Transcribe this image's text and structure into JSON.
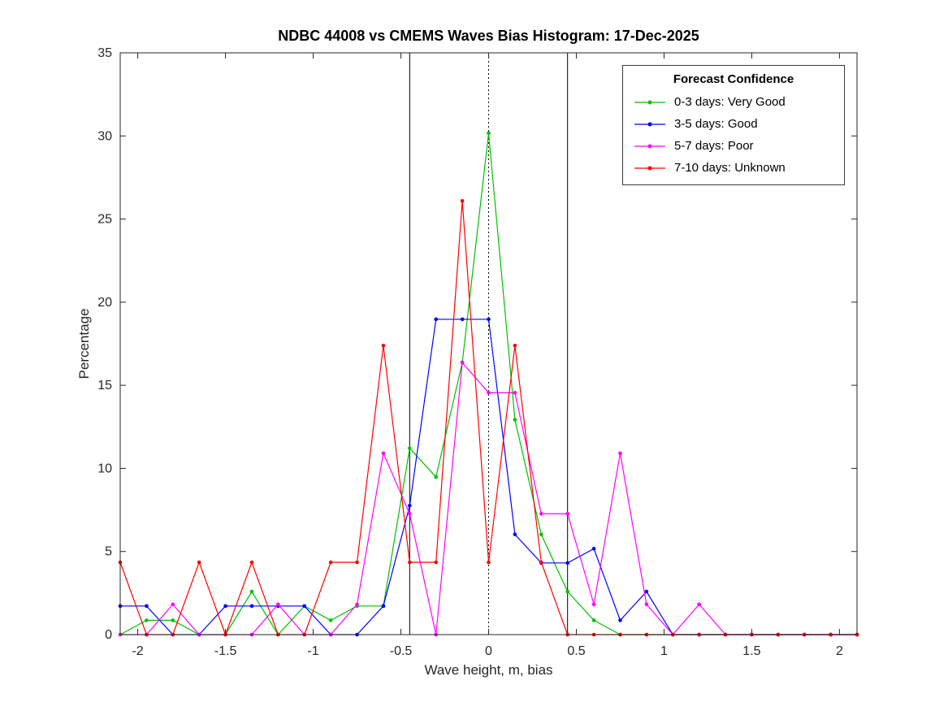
{
  "chart_data": {
    "type": "line",
    "title": "NDBC 44008 vs CMEMS Waves Bias Histogram: 17-Dec-2025",
    "xlabel": "Wave height, m, bias",
    "ylabel": "Percentage",
    "xlim": [
      -2.1,
      2.1
    ],
    "ylim": [
      0,
      35
    ],
    "xticks": [
      -2,
      -1.5,
      -1,
      -0.5,
      0,
      0.5,
      1,
      1.5,
      2
    ],
    "yticks": [
      0,
      5,
      10,
      15,
      20,
      25,
      30,
      35
    ],
    "grid": false,
    "marker": "dot",
    "legend": {
      "title": "Forecast Confidence",
      "position": "top-right"
    },
    "reference_lines": [
      {
        "x": -0.45,
        "style": "solid",
        "color": "#000000"
      },
      {
        "x": 0,
        "style": "dotted",
        "color": "#000000"
      },
      {
        "x": 0.45,
        "style": "solid",
        "color": "#000000"
      }
    ],
    "x": [
      -2.1,
      -1.95,
      -1.8,
      -1.65,
      -1.5,
      -1.35,
      -1.2,
      -1.05,
      -0.9,
      -0.75,
      -0.6,
      -0.45,
      -0.3,
      -0.15,
      0,
      0.15,
      0.3,
      0.45,
      0.6,
      0.75,
      0.9,
      1.05,
      1.2,
      1.35,
      1.5,
      1.65,
      1.8,
      1.95,
      2.1
    ],
    "series": [
      {
        "name": "0-3 days: Very Good",
        "color": "#00c000",
        "values": [
          0,
          0.86,
          0.86,
          0,
          0,
          2.59,
          0,
          1.72,
          0.86,
          1.72,
          1.72,
          11.21,
          9.48,
          16.38,
          30.17,
          12.93,
          6.03,
          2.59,
          0.86,
          0,
          0,
          0,
          0,
          0,
          0,
          0,
          0,
          0,
          0
        ]
      },
      {
        "name": "3-5 days: Good",
        "color": "#0000ff",
        "values": [
          1.72,
          1.72,
          0,
          0,
          1.72,
          1.72,
          1.72,
          1.72,
          0,
          0,
          1.72,
          7.76,
          18.97,
          18.97,
          18.97,
          6.03,
          4.31,
          4.31,
          5.17,
          0.86,
          2.59,
          0,
          0,
          0,
          0,
          0,
          0,
          0,
          0
        ]
      },
      {
        "name": "5-7 days: Poor",
        "color": "#ff00ff",
        "values": [
          0,
          0,
          1.82,
          0,
          0,
          0,
          1.82,
          0,
          0,
          1.82,
          10.91,
          7.27,
          0,
          16.36,
          14.55,
          14.55,
          7.27,
          7.27,
          1.82,
          10.91,
          1.82,
          0,
          1.82,
          0,
          0,
          0,
          0,
          0,
          0
        ]
      },
      {
        "name": "7-10 days: Unknown",
        "color": "#ff0000",
        "values": [
          4.35,
          0,
          0,
          4.35,
          0,
          4.35,
          0,
          0,
          4.35,
          4.35,
          17.39,
          4.35,
          4.35,
          26.09,
          4.35,
          17.39,
          4.35,
          0,
          0,
          0,
          0,
          0,
          0,
          0,
          0,
          0,
          0,
          0,
          0
        ]
      }
    ]
  }
}
